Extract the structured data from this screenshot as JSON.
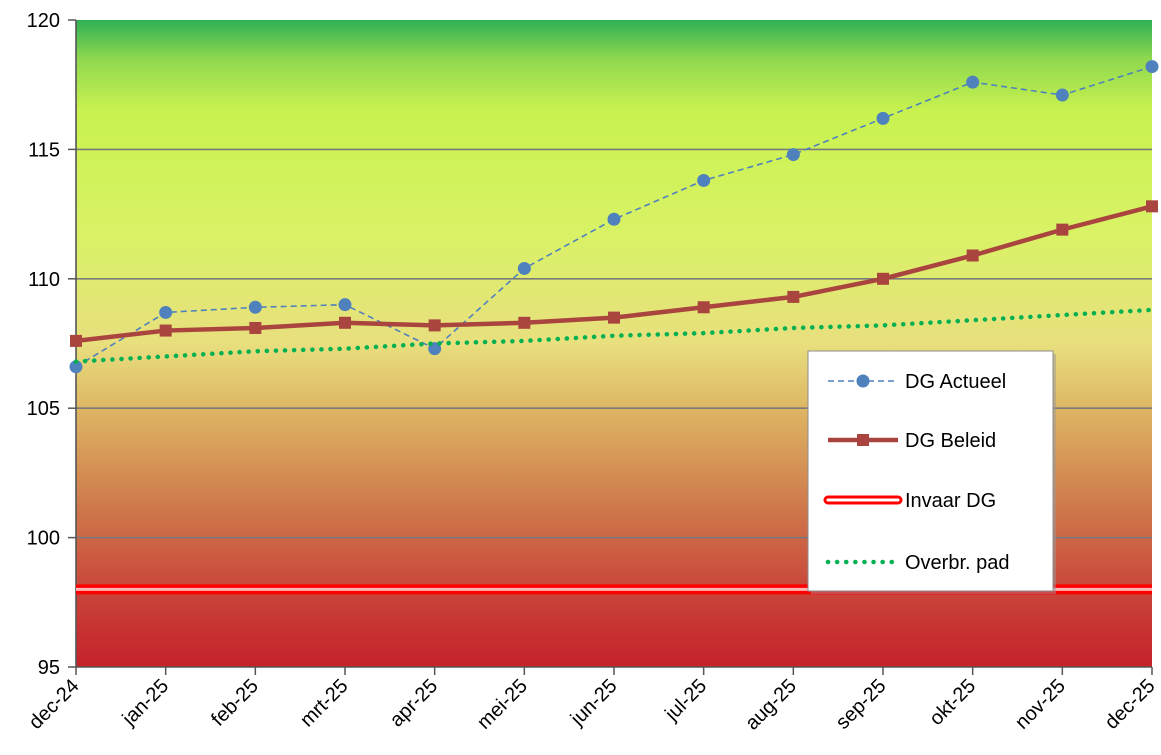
{
  "chart_data": {
    "type": "line",
    "categories": [
      "dec-24",
      "jan-25",
      "feb-25",
      "mrt-25",
      "apr-25",
      "mei-25",
      "jun-25",
      "jul-25",
      "aug-25",
      "sep-25",
      "okt-25",
      "nov-25",
      "dec-25"
    ],
    "ylim": [
      95,
      120
    ],
    "yticks": [
      "95",
      "100",
      "105",
      "110",
      "115",
      "120"
    ],
    "grid": "horizontal",
    "legend_position": "right",
    "background": "gradient red (bottom) to yellow to green (top)",
    "series": [
      {
        "name": "DG Actueel",
        "style": "dashed-with-circles",
        "color": "#4f81bd",
        "values": [
          106.6,
          108.7,
          108.9,
          109.0,
          107.3,
          110.4,
          112.3,
          113.8,
          114.8,
          116.2,
          117.6,
          117.1,
          118.2
        ]
      },
      {
        "name": "DG Beleid",
        "style": "solid-with-squares",
        "color": "#a9453e",
        "values": [
          107.6,
          108.0,
          108.1,
          108.3,
          108.2,
          108.3,
          108.5,
          108.9,
          109.3,
          110.0,
          110.9,
          111.9,
          112.8
        ]
      },
      {
        "name": "Invaar DG",
        "style": "double-red-line",
        "color": "#ff0000",
        "values": [
          98.0,
          98.0,
          98.0,
          98.0,
          98.0,
          98.0,
          98.0,
          98.0,
          98.0,
          98.0,
          98.0,
          98.0,
          98.0
        ]
      },
      {
        "name": "Overbr. pad",
        "style": "dotted",
        "color": "#00b050",
        "values": [
          106.8,
          107.0,
          107.2,
          107.3,
          107.5,
          107.6,
          107.8,
          107.9,
          108.1,
          108.2,
          108.4,
          108.6,
          108.8
        ]
      }
    ]
  }
}
